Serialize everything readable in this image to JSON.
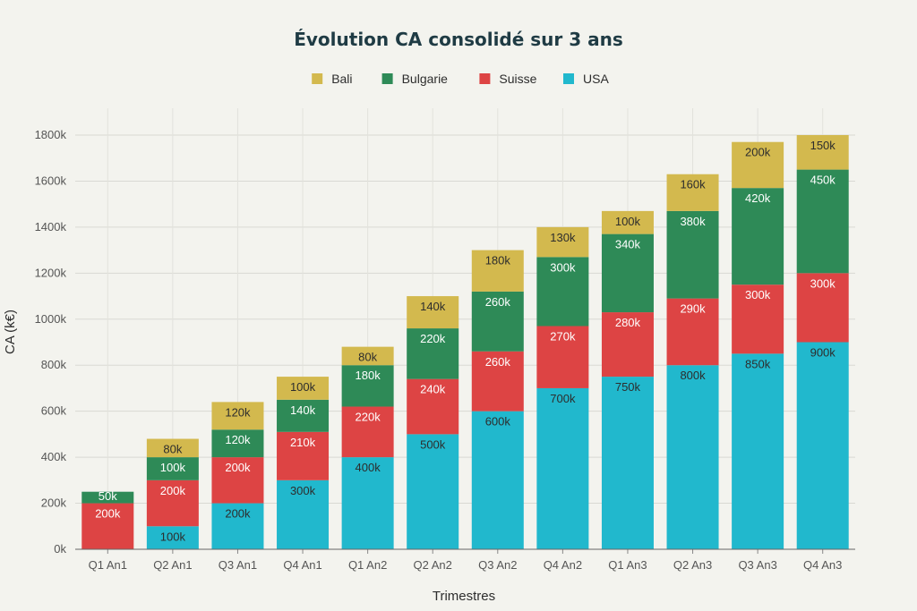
{
  "chart_data": {
    "type": "bar",
    "stacked": true,
    "title": "Évolution CA consolidé sur 3 ans",
    "xlabel": "Trimestres",
    "ylabel": "CA (k€)",
    "ylim": [
      0,
      1800
    ],
    "yticks": [
      0,
      200,
      400,
      600,
      800,
      1000,
      1200,
      1400,
      1600,
      1800
    ],
    "ytick_suffix": "k",
    "grid": true,
    "legend_position": "top-center",
    "categories": [
      "Q1 An1",
      "Q2 An1",
      "Q3 An1",
      "Q4 An1",
      "Q1 An2",
      "Q2 An2",
      "Q3 An2",
      "Q4 An2",
      "Q1 An3",
      "Q2 An3",
      "Q3 An3",
      "Q4 An3"
    ],
    "stack_order": [
      "USA",
      "Suisse",
      "Bulgarie",
      "Bali"
    ],
    "series": [
      {
        "name": "Bali",
        "color": "#d3b94e",
        "label_color": "#2d2d2d",
        "values": [
          0,
          80,
          120,
          100,
          80,
          140,
          180,
          130,
          100,
          160,
          200,
          150
        ]
      },
      {
        "name": "Bulgarie",
        "color": "#2e8a57",
        "label_color": "#ffffff",
        "values": [
          50,
          100,
          120,
          140,
          180,
          220,
          260,
          300,
          340,
          380,
          420,
          450
        ]
      },
      {
        "name": "Suisse",
        "color": "#dd4444",
        "label_color": "#ffffff",
        "values": [
          200,
          200,
          200,
          210,
          220,
          240,
          260,
          270,
          280,
          290,
          300,
          300
        ]
      },
      {
        "name": "USA",
        "color": "#21b8cd",
        "label_color": "#2d2d2d",
        "values": [
          0,
          100,
          200,
          300,
          400,
          500,
          600,
          700,
          750,
          800,
          850,
          900
        ]
      }
    ]
  }
}
